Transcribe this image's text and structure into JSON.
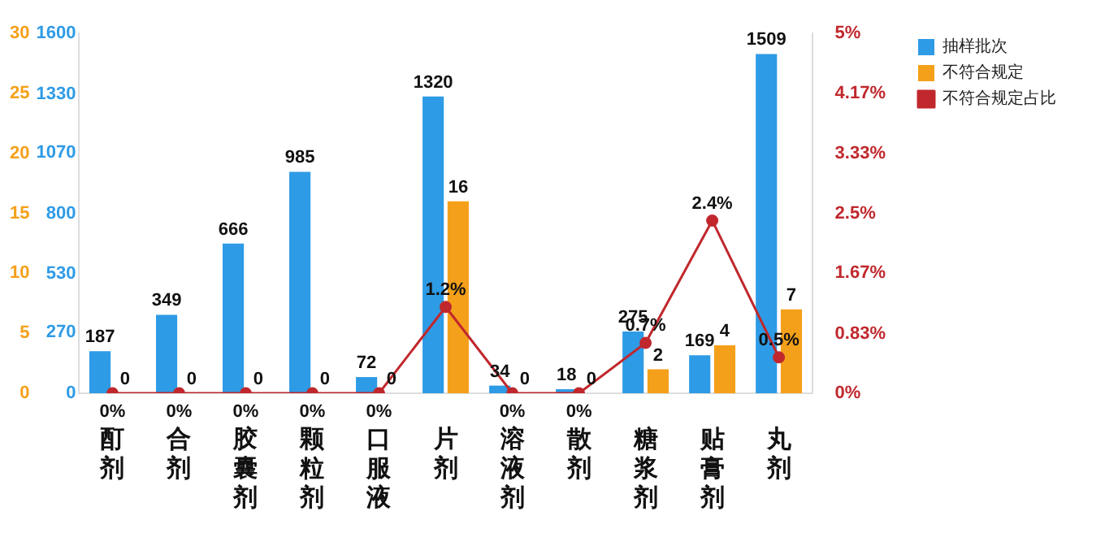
{
  "chart_data": {
    "type": "bar",
    "categories": [
      "酊剂",
      "合剂",
      "胶囊剂",
      "颗粒剂",
      "口服液",
      "片剂",
      "溶液剂",
      "散剂",
      "糖浆剂",
      "贴膏剂",
      "丸剂"
    ],
    "series": [
      {
        "name": "抽样批次",
        "color": "#2e9be6",
        "values": [
          187,
          349,
          666,
          985,
          72,
          1320,
          34,
          18,
          275,
          169,
          1509
        ],
        "value_labels": [
          "187",
          "349",
          "666",
          "985",
          "72",
          "1320",
          "34",
          "18",
          "275",
          "169",
          "1509"
        ]
      },
      {
        "name": "不符合规定",
        "color": "#f5a01a",
        "axis": "y2",
        "values": [
          0,
          0,
          0,
          0,
          0,
          16,
          0,
          0,
          2,
          4,
          7
        ],
        "value_labels": [
          "0",
          "0",
          "0",
          "0",
          "0",
          "16",
          "0",
          "0",
          "2",
          "4",
          "7"
        ]
      },
      {
        "name": "不符合规定占比",
        "type": "line",
        "color": "#c0282d",
        "axis": "y3",
        "marker": "circle",
        "line_style": "solid",
        "values": [
          0,
          0,
          0,
          0,
          0,
          1.2,
          0,
          0,
          0.7,
          2.4,
          0.5
        ],
        "value_labels": [
          "0%",
          "0%",
          "0%",
          "0%",
          "0%",
          "1.2%",
          "0%",
          "0%",
          "0.7%",
          "2.4%",
          "0.5%"
        ]
      }
    ],
    "ylim": [
      0,
      1600
    ],
    "yticks": [
      0,
      270,
      530,
      800,
      1070,
      1330,
      1600
    ],
    "y2lim": [
      0,
      30
    ],
    "y2ticks": [
      0,
      5,
      10,
      15,
      20,
      25,
      30
    ],
    "y3lim": [
      0,
      5
    ],
    "y3ticks": [
      {
        "value": 0,
        "label": "0%"
      },
      {
        "value": 0.83,
        "label": "0.83%"
      },
      {
        "value": 1.67,
        "label": "1.67%"
      },
      {
        "value": 2.5,
        "label": "2.5%"
      },
      {
        "value": 3.33,
        "label": "3.33%"
      },
      {
        "value": 4.17,
        "label": "4.17%"
      },
      {
        "value": 5,
        "label": "5%"
      }
    ],
    "legend": "top right",
    "grid": false
  }
}
